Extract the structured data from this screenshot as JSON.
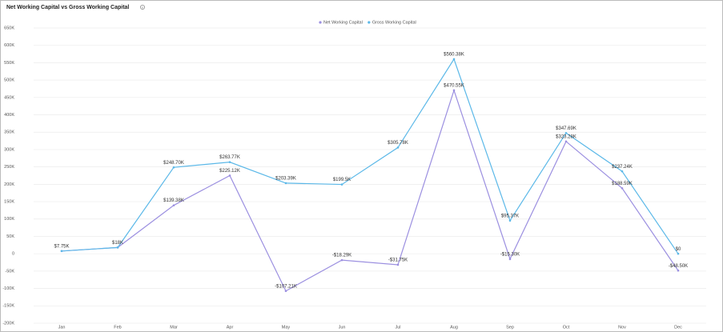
{
  "chart_data": {
    "type": "line",
    "title": "Net Working Capital vs Gross Working Capital",
    "categories": [
      "Jan",
      "Feb",
      "Mar",
      "Apr",
      "May",
      "Jun",
      "Jul",
      "Aug",
      "Sep",
      "Oct",
      "Nov",
      "Dec"
    ],
    "series": [
      {
        "name": "Net Working Capital",
        "color": "#9b8fe0",
        "values": [
          7.75,
          18,
          139.38,
          225.12,
          -107.21,
          -18.29,
          -31.75,
          470.55,
          -15.3,
          323.28,
          188.59,
          -48.5
        ],
        "value_labels": [
          null,
          null,
          "$139.38K",
          "$225.12K",
          "-$107.21K",
          "-$18.29K",
          "-$31.75K",
          "$470.55K",
          "-$15.30K",
          "$323.28K",
          "$188.59K",
          "-$48.50K"
        ]
      },
      {
        "name": "Gross Working Capital",
        "color": "#5bb8e8",
        "values": [
          7.75,
          18,
          248.7,
          263.77,
          203.39,
          199.5,
          305.78,
          560.38,
          95.37,
          347.69,
          237.24,
          0
        ],
        "value_labels": [
          "$7.75K",
          "$18K",
          "$248.70K",
          "$263.77K",
          "$203.39K",
          "$199.5K",
          "$305.78K",
          "$560.38K",
          "$95.37K",
          "$347.69K",
          "$237.24K",
          "$0"
        ]
      }
    ],
    "ylim": [
      -200,
      650
    ],
    "yticks": [
      {
        "value": -200,
        "label": "-200K"
      },
      {
        "value": -150,
        "label": "-150K"
      },
      {
        "value": -100,
        "label": "-100K"
      },
      {
        "value": -50,
        "label": "-50K"
      },
      0,
      {
        "value": 50,
        "label": "50K"
      },
      {
        "value": 100,
        "label": "100K"
      },
      {
        "value": 150,
        "label": "150K"
      },
      {
        "value": 200,
        "label": "200K"
      },
      {
        "value": 250,
        "label": "250K"
      },
      {
        "value": 300,
        "label": "300K"
      },
      {
        "value": 350,
        "label": "350K"
      },
      {
        "value": 400,
        "label": "400K"
      },
      {
        "value": 450,
        "label": "450K"
      },
      {
        "value": 500,
        "label": "500K"
      },
      {
        "value": 550,
        "label": "550K"
      },
      {
        "value": 600,
        "label": "600K"
      },
      {
        "value": 650,
        "label": "650K"
      }
    ],
    "grid": true
  }
}
